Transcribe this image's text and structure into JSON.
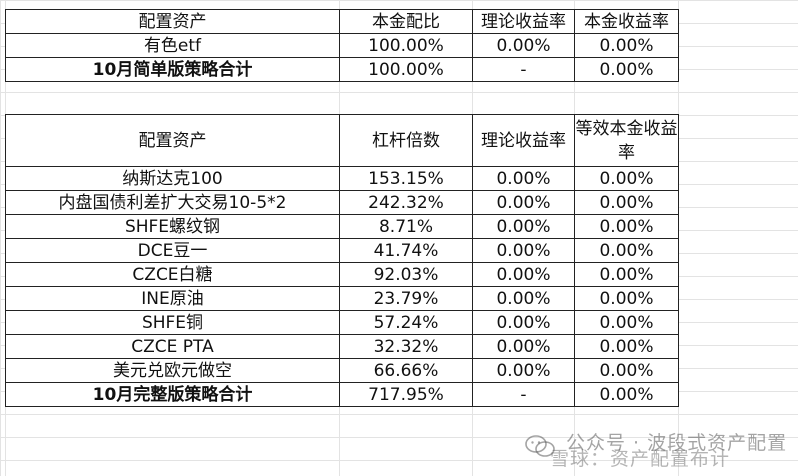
{
  "table1": {
    "headers": [
      "配置资产",
      "本金配比",
      "理论收益率",
      "本金收益率"
    ],
    "rows": [
      [
        "有色etf",
        "100.00%",
        "0.00%",
        "0.00%"
      ]
    ],
    "total": [
      "10月简单版策略合计",
      "100.00%",
      "-",
      "0.00%"
    ]
  },
  "table2": {
    "headers": [
      "配置资产",
      "杠杆倍数",
      "理论收益率",
      "等效本金收益率"
    ],
    "rows": [
      [
        "纳斯达克100",
        "153.15%",
        "0.00%",
        "0.00%"
      ],
      [
        "内盘国债利差扩大交易10-5*2",
        "242.32%",
        "0.00%",
        "0.00%"
      ],
      [
        "SHFE螺纹钢",
        "8.71%",
        "0.00%",
        "0.00%"
      ],
      [
        "DCE豆一",
        "41.74%",
        "0.00%",
        "0.00%"
      ],
      [
        "CZCE白糖",
        "92.03%",
        "0.00%",
        "0.00%"
      ],
      [
        "INE原油",
        "23.79%",
        "0.00%",
        "0.00%"
      ],
      [
        "SHFE铜",
        "57.24%",
        "0.00%",
        "0.00%"
      ],
      [
        "CZCE PTA",
        "32.32%",
        "0.00%",
        "0.00%"
      ],
      [
        "美元兑欧元做空",
        "66.66%",
        "0.00%",
        "0.00%"
      ]
    ],
    "total": [
      "10月完整版策略合计",
      "717.95%",
      "-",
      "0.00%"
    ]
  },
  "watermark": {
    "line1": "公众号 · 波段式资产配置",
    "line2": "雪球：资产配置布计",
    "icon": "wechat-icon"
  }
}
